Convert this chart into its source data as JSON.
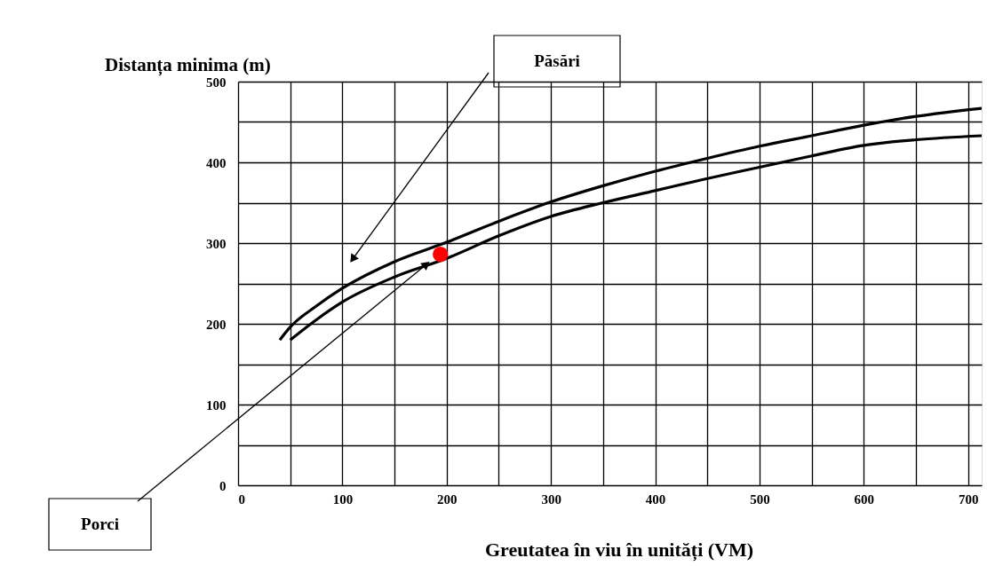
{
  "chart_data": {
    "type": "line",
    "xlabel": "Greutatea în viu în unități  (VM)",
    "ylabel": "Distanța minima (m)",
    "xlim": [
      0,
      713
    ],
    "ylim": [
      0,
      500
    ],
    "xticks": [
      0,
      {
        "value": 50,
        "label": null
      },
      100,
      {
        "value": 150,
        "label": null
      },
      200,
      {
        "value": 250,
        "label": null
      },
      300,
      {
        "value": 350,
        "label": null
      },
      400,
      {
        "value": 450,
        "label": null
      },
      500,
      {
        "value": 550,
        "label": null
      },
      600,
      {
        "value": 650,
        "label": null
      },
      700
    ],
    "yticks": [
      0,
      {
        "value": 50,
        "label": null
      },
      100,
      {
        "value": 150,
        "label": null
      },
      200,
      {
        "value": 250,
        "label": null
      },
      300,
      {
        "value": 350,
        "label": null
      },
      400,
      {
        "value": 450,
        "label": null
      },
      500
    ],
    "grid": true,
    "marker": "none",
    "line_style": "solid",
    "series": [
      {
        "color": "#000000",
        "x": [
          40,
          50,
          75,
          100,
          150,
          200,
          250,
          300,
          350,
          400,
          450,
          500,
          550,
          600,
          650,
          713
        ],
        "values": [
          180,
          196,
          222,
          244,
          277,
          301,
          327,
          351,
          371,
          389,
          405,
          420,
          433,
          446,
          457,
          467
        ]
      },
      {
        "color": "#000000",
        "x": [
          50,
          75,
          100,
          150,
          200,
          250,
          300,
          350,
          400,
          450,
          500,
          550,
          600,
          650,
          713
        ],
        "values": [
          180,
          205,
          227,
          258,
          281,
          309,
          333,
          350,
          365,
          380,
          394,
          408,
          421,
          428,
          433
        ]
      },
      {
        "type": "scatter",
        "marker": "circle",
        "color": "#ff0000",
        "x": [
          194
        ],
        "values": [
          286
        ]
      }
    ],
    "annotations": [
      "Păsări",
      "Porci"
    ]
  }
}
